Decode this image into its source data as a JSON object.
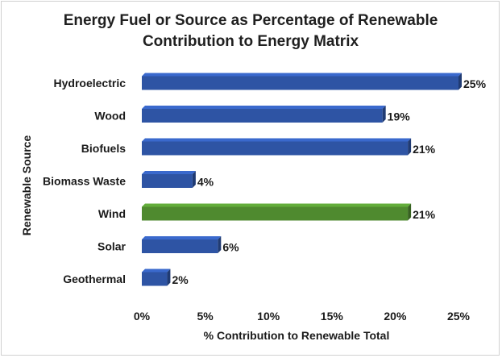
{
  "chart_data": {
    "type": "bar",
    "orientation": "horizontal",
    "title_lines": [
      "Energy Fuel or Source as Percentage of Renewable",
      "Contribution to Energy Matrix"
    ],
    "xlabel": "% Contribution to Renewable Total",
    "ylabel": "Renewable Source",
    "categories": [
      "Hydroelectric",
      "Wood",
      "Biofuels",
      "Biomass Waste",
      "Wind",
      "Solar",
      "Geothermal"
    ],
    "values": [
      25,
      19,
      21,
      4,
      21,
      6,
      2
    ],
    "data_labels": [
      "25%",
      "19%",
      "21%",
      "4%",
      "21%",
      "6%",
      "2%"
    ],
    "xlim": [
      0,
      25
    ],
    "xticks": [
      0,
      5,
      10,
      15,
      20,
      25
    ],
    "xtick_labels": [
      "0%",
      "5%",
      "10%",
      "15%",
      "20%",
      "25%"
    ],
    "bar_colors": [
      "#2e54a4",
      "#2e54a4",
      "#2e54a4",
      "#2e54a4",
      "#4f8a2f",
      "#2e54a4",
      "#2e54a4"
    ],
    "grid": false,
    "legend": "none"
  }
}
